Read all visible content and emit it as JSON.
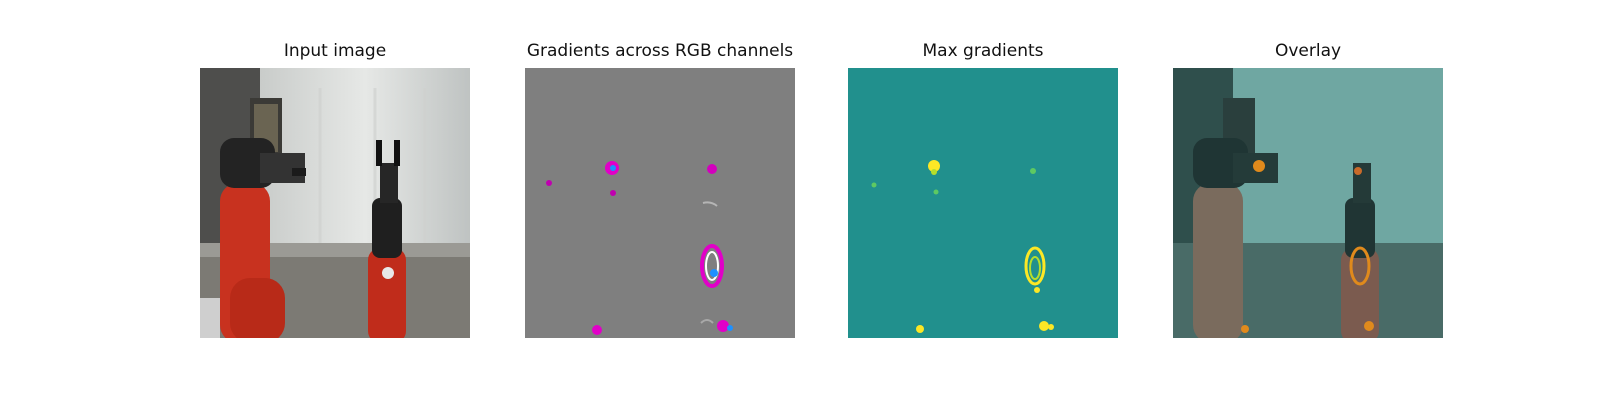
{
  "figure": {
    "panels": [
      {
        "title": "Input image"
      },
      {
        "title": "Gradients across RGB channels"
      },
      {
        "title": "Max gradients"
      },
      {
        "title": "Overlay"
      }
    ]
  },
  "colors": {
    "background": "#ffffff",
    "robot_red": "#c8321f",
    "gradient_gray": "#7f7f7f",
    "gradient_magenta": "#e100c8",
    "viridis_base": "#21908d",
    "viridis_high": "#fde725",
    "overlay_teal": "#4f8d88",
    "overlay_orange": "#e08a1c"
  }
}
